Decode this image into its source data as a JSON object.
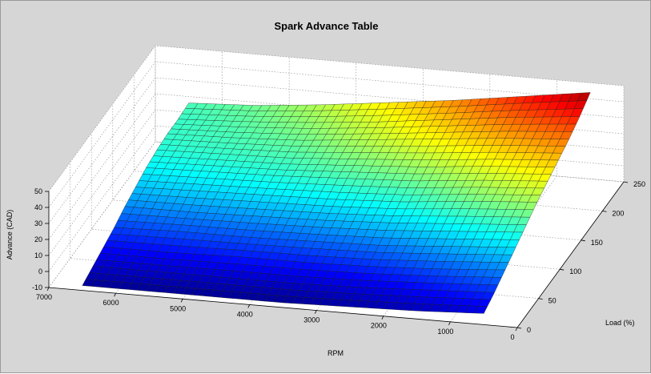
{
  "chart_data": {
    "type": "surface",
    "title": "Spark Advance Table",
    "xlabel": "RPM",
    "ylabel": "Load (%)",
    "zlabel": "Advance (CAD)",
    "x_ticks": [
      0,
      1000,
      2000,
      3000,
      4000,
      5000,
      6000,
      7000
    ],
    "y_ticks": [
      0,
      50,
      100,
      150,
      200,
      250
    ],
    "z_ticks": [
      -10,
      0,
      10,
      20,
      30,
      40,
      50
    ],
    "xlim": [
      0,
      7000
    ],
    "ylim": [
      0,
      250
    ],
    "zlim": [
      -10,
      50
    ],
    "colormap": "jet",
    "grid": true,
    "rpm": [
      500,
      1500,
      2500,
      3500,
      4500,
      5500,
      6500
    ],
    "load": [
      0,
      25,
      50,
      75,
      100,
      125,
      150,
      175,
      200,
      225,
      250
    ],
    "advance": [
      [
        -3,
        1,
        6,
        11,
        16,
        21,
        25,
        29,
        33,
        38,
        44
      ],
      [
        -5,
        -1,
        3,
        8,
        13,
        18,
        22,
        26,
        30,
        34,
        38
      ],
      [
        -6,
        -3,
        1,
        5,
        10,
        14,
        18,
        22,
        26,
        29,
        32
      ],
      [
        -7,
        -4,
        0,
        4,
        8,
        12,
        16,
        19,
        22,
        24,
        27
      ],
      [
        -7,
        -4,
        0,
        3,
        7,
        11,
        14,
        16,
        18,
        20,
        22
      ],
      [
        -7,
        -4,
        -1,
        3,
        6,
        10,
        13,
        15,
        16,
        17,
        18
      ],
      [
        -7,
        -4,
        -1,
        2,
        6,
        9,
        12,
        14,
        15,
        15,
        16
      ]
    ]
  }
}
